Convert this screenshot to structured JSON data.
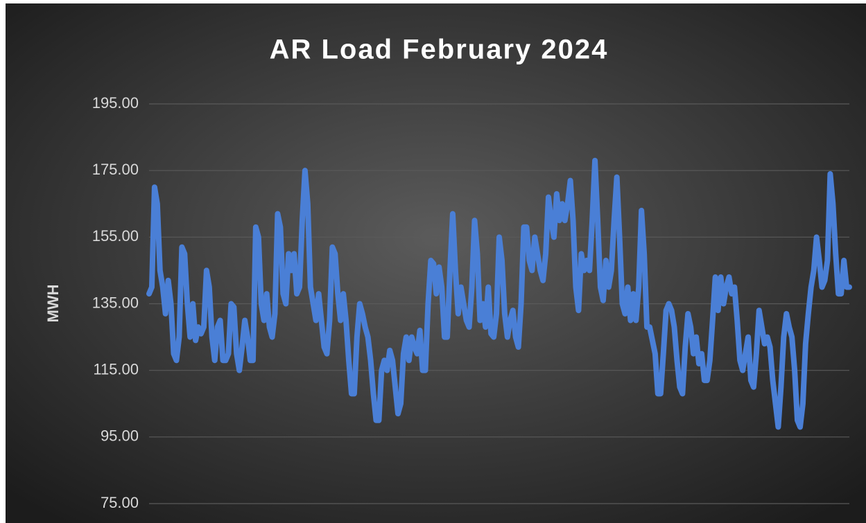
{
  "chart_data": {
    "type": "line",
    "title": "AR Load February 2024",
    "y_label": "MWH",
    "ylim": [
      75,
      195
    ],
    "yticks": [
      {
        "value": 75,
        "label": "75.00"
      },
      {
        "value": 95,
        "label": "95.00"
      },
      {
        "value": 115,
        "label": "115.00"
      },
      {
        "value": 135,
        "label": "135.00"
      },
      {
        "value": 155,
        "label": "155.00"
      },
      {
        "value": 175,
        "label": "175.00"
      },
      {
        "value": 195,
        "label": "195.00"
      }
    ],
    "grid": true,
    "color": "#4a7fd6",
    "values": [
      138,
      140,
      170,
      165,
      145,
      140,
      132,
      142,
      135,
      120,
      118,
      125,
      152,
      150,
      135,
      125,
      135,
      124,
      128,
      126,
      128,
      145,
      140,
      125,
      118,
      128,
      130,
      118,
      118,
      120,
      135,
      134,
      120,
      115,
      122,
      130,
      125,
      118,
      118,
      158,
      155,
      135,
      130,
      138,
      128,
      125,
      132,
      162,
      158,
      138,
      135,
      150,
      145,
      150,
      138,
      140,
      160,
      175,
      165,
      140,
      135,
      130,
      138,
      130,
      122,
      120,
      130,
      152,
      150,
      138,
      130,
      138,
      130,
      118,
      108,
      108,
      125,
      135,
      132,
      128,
      125,
      118,
      108,
      100,
      100,
      115,
      118,
      115,
      121,
      118,
      110,
      102,
      105,
      120,
      125,
      118,
      125,
      122,
      120,
      127,
      115,
      115,
      135,
      148,
      147,
      138,
      146,
      140,
      125,
      125,
      145,
      162,
      145,
      132,
      140,
      135,
      130,
      128,
      140,
      160,
      150,
      130,
      135,
      128,
      140,
      126,
      125,
      132,
      155,
      148,
      132,
      125,
      130,
      133,
      125,
      122,
      135,
      158,
      158,
      148,
      145,
      155,
      150,
      145,
      142,
      150,
      167,
      160,
      155,
      168,
      160,
      165,
      160,
      165,
      172,
      160,
      140,
      133,
      150,
      145,
      148,
      145,
      160,
      178,
      160,
      140,
      136,
      148,
      140,
      145,
      160,
      173,
      155,
      135,
      132,
      140,
      130,
      138,
      130,
      140,
      163,
      150,
      128,
      128,
      124,
      120,
      108,
      108,
      120,
      133,
      135,
      133,
      128,
      118,
      110,
      108,
      122,
      132,
      128,
      120,
      125,
      117,
      120,
      112,
      112,
      118,
      130,
      143,
      133,
      143,
      135,
      140,
      143,
      138,
      140,
      130,
      118,
      115,
      120,
      125,
      112,
      110,
      120,
      133,
      128,
      123,
      125,
      122,
      112,
      105,
      98,
      110,
      125,
      132,
      128,
      125,
      115,
      100,
      98,
      105,
      123,
      132,
      140,
      145,
      155,
      148,
      140,
      142,
      148,
      174,
      165,
      150,
      138,
      138,
      148,
      140,
      140
    ]
  }
}
